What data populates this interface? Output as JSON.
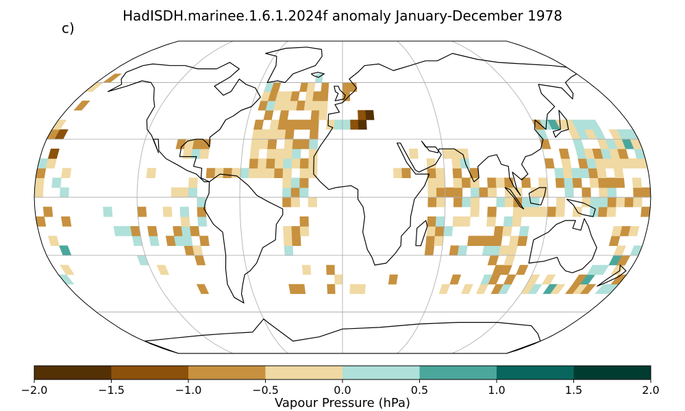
{
  "title": "HadISDH.marinee.1.6.1.2024f anomaly January-December 1978",
  "panel_label": "c)",
  "projection": "robinson",
  "colorbar": {
    "label": "Vapour Pressure (hPa)",
    "ticks": [
      "−2.0",
      "−1.5",
      "−1.0",
      "−0.5",
      "0.0",
      "0.5",
      "1.0",
      "1.5",
      "2.0"
    ],
    "range": [
      -2.0,
      2.0
    ],
    "colors": [
      "#543005",
      "#8c510a",
      "#c7913f",
      "#f0d9a3",
      "#b0e0da",
      "#4aa79c",
      "#08665e",
      "#003c30"
    ]
  },
  "map": {
    "grid_lon_step_deg": 60,
    "grid_lat_step_deg": 30,
    "gridline_color": "#b0b0b0",
    "coastline_color": "#000000"
  }
}
